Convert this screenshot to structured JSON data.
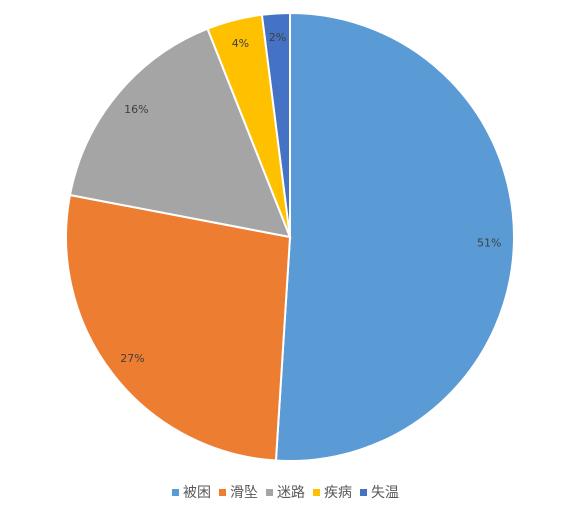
{
  "chart_data": {
    "type": "pie",
    "categories": [
      "被困",
      "滑坠",
      "迷路",
      "疾病",
      "失温"
    ],
    "values": [
      51,
      27,
      16,
      4,
      2
    ],
    "value_labels": [
      "51%",
      "27%",
      "16%",
      "4%",
      "2%"
    ],
    "colors": [
      "#5b9bd5",
      "#ed7d31",
      "#a5a5a5",
      "#ffc000",
      "#4472c4"
    ],
    "legend": "bottom"
  }
}
